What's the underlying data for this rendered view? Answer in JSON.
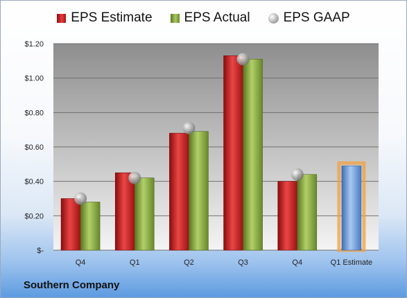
{
  "legend": {
    "estimate": "EPS Estimate",
    "actual": "EPS Actual",
    "gaap": "EPS GAAP"
  },
  "footer": {
    "company": "Southern Company"
  },
  "colors": {
    "estimate": "#c62828",
    "actual": "#8aa63f",
    "gaap": "#a5a5a5",
    "forecast": "#6c9ad6",
    "forecast_glow": "#f0a040"
  },
  "chart_data": {
    "type": "bar",
    "categories": [
      "Q4",
      "Q1",
      "Q2",
      "Q3",
      "Q4",
      "Q1 Estimate"
    ],
    "series": [
      {
        "name": "EPS Estimate",
        "values": [
          0.3,
          0.45,
          0.68,
          1.13,
          0.4,
          null
        ]
      },
      {
        "name": "EPS Actual",
        "values": [
          0.28,
          0.42,
          0.69,
          1.11,
          0.44,
          null
        ]
      },
      {
        "name": "EPS GAAP",
        "values": [
          0.3,
          0.42,
          0.71,
          1.11,
          0.44,
          null
        ]
      },
      {
        "name": "Q1 Estimate",
        "values": [
          null,
          null,
          null,
          null,
          null,
          0.49
        ]
      }
    ],
    "ylim": [
      0,
      1.2
    ],
    "y_ticks": [
      {
        "value": 0,
        "label": "$-"
      },
      {
        "value": 0.2,
        "label": "$0.20"
      },
      {
        "value": 0.4,
        "label": "$0.40"
      },
      {
        "value": 0.6,
        "label": "$0.60"
      },
      {
        "value": 0.8,
        "label": "$0.80"
      },
      {
        "value": 1.0,
        "label": "$1.00"
      },
      {
        "value": 1.2,
        "label": "$1.20"
      }
    ],
    "grid": true,
    "legend_position": "top"
  }
}
